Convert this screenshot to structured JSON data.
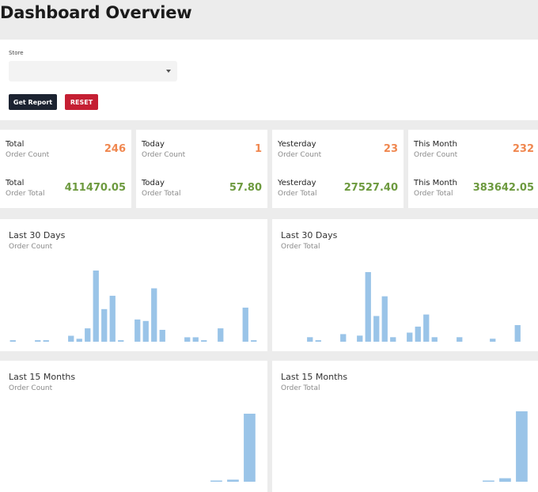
{
  "page": {
    "title": "Dashboard Overview"
  },
  "filter": {
    "store_label": "Store",
    "store_value": "",
    "caret_icon": "caret-down-icon",
    "report_button": "Get Report",
    "reset_button": "RESET"
  },
  "stats": [
    {
      "count_title": "Total",
      "count_sub": "Order Count",
      "count_value": "246",
      "total_title": "Total",
      "total_sub": "Order Total",
      "total_value": "411470.05"
    },
    {
      "count_title": "Today",
      "count_sub": "Order Count",
      "count_value": "1",
      "total_title": "Today",
      "total_sub": "Order Total",
      "total_value": "57.80"
    },
    {
      "count_title": "Yesterday",
      "count_sub": "Order Count",
      "count_value": "23",
      "total_title": "Yesterday",
      "total_sub": "Order Total",
      "total_value": "27527.40"
    },
    {
      "count_title": "This Month",
      "count_sub": "Order Count",
      "count_value": "232",
      "total_title": "This Month",
      "total_sub": "Order Total",
      "total_value": "383642.05"
    }
  ],
  "colors": {
    "count": "#f0874f",
    "total": "#6d9a3f",
    "bar": "#9ac4e8",
    "report_button": "#1c2331",
    "reset_button": "#c51f33"
  },
  "chart_data": [
    {
      "type": "bar",
      "title": "Last 30 Days",
      "subtitle": "Order Count",
      "values": [
        1,
        0,
        0,
        1,
        1,
        0,
        0,
        4,
        2,
        9,
        48,
        22,
        31,
        1,
        0,
        15,
        14,
        36,
        8,
        0,
        0,
        3,
        3,
        1,
        0,
        9,
        0,
        0,
        23,
        1
      ],
      "ylim": [
        0,
        48
      ]
    },
    {
      "type": "bar",
      "title": "Last 30 Days",
      "subtitle": "Order Total",
      "values": [
        0,
        0,
        0,
        3,
        1,
        0,
        0,
        5,
        0,
        4,
        46,
        17,
        30,
        3,
        0,
        6,
        10,
        18,
        3,
        0,
        0,
        3,
        0,
        0,
        0,
        2,
        0,
        0,
        11,
        0
      ],
      "ylim": [
        0,
        46
      ]
    },
    {
      "type": "bar",
      "title": "Last 15 Months",
      "subtitle": "Order Count",
      "values": [
        0,
        0,
        0,
        0,
        0,
        0,
        0,
        0,
        0,
        0,
        0,
        0,
        1,
        3,
        100
      ],
      "ylim": [
        0,
        100
      ]
    },
    {
      "type": "bar",
      "title": "Last 15 Months",
      "subtitle": "Order Total",
      "values": [
        0,
        0,
        0,
        0,
        0,
        0,
        0,
        0,
        0,
        0,
        0,
        0,
        1,
        5,
        100
      ],
      "ylim": [
        0,
        100
      ]
    }
  ]
}
